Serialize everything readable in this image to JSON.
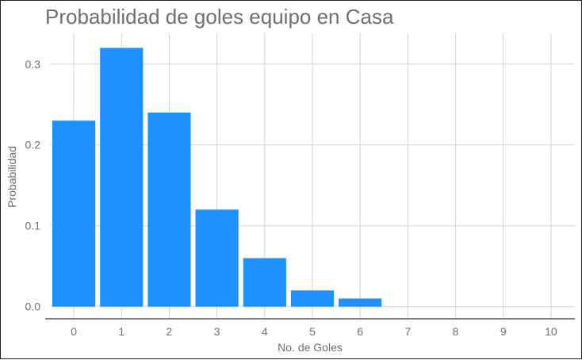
{
  "chart_data": {
    "type": "bar",
    "title": "Probabilidad de goles equipo en Casa",
    "xlabel": "No. de Goles",
    "ylabel": "Probabilidad",
    "categories": [
      "0",
      "1",
      "2",
      "3",
      "4",
      "5",
      "6",
      "7",
      "8",
      "9",
      "10"
    ],
    "values": [
      0.23,
      0.32,
      0.24,
      0.12,
      0.06,
      0.02,
      0.01,
      0.0,
      0.0,
      0.0,
      0.0
    ],
    "yticks": [
      "0.0",
      "0.1",
      "0.2",
      "0.3"
    ],
    "ytick_values": [
      0.0,
      0.1,
      0.2,
      0.3
    ],
    "ylim": [
      -0.015,
      0.338
    ],
    "bar_color": "#1e90ff",
    "grid": true,
    "legend": "none"
  }
}
